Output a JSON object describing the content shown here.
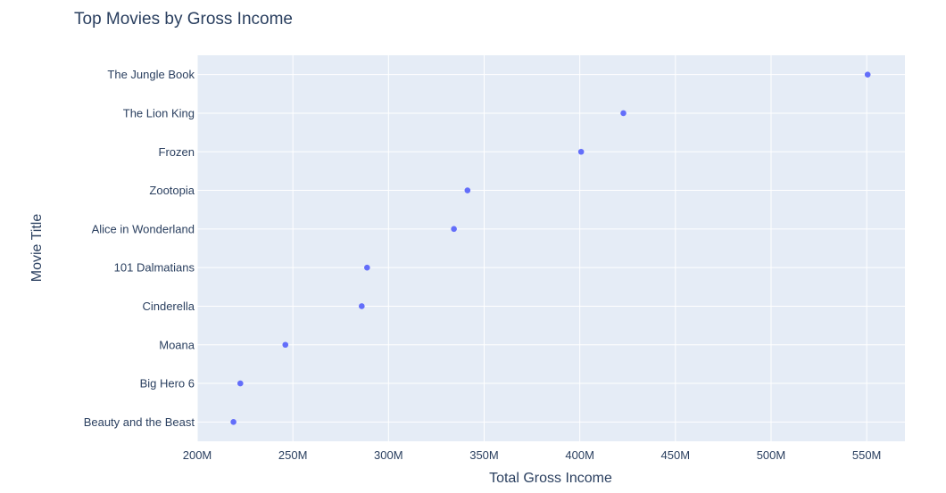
{
  "chart_data": {
    "type": "scatter",
    "title": "Top Movies by Gross Income",
    "xlabel": "Total Gross Income",
    "ylabel": "Movie Title",
    "xlim": [
      200000000,
      570000000
    ],
    "x_ticks": [
      {
        "value": 200000000,
        "label": "200M"
      },
      {
        "value": 250000000,
        "label": "250M"
      },
      {
        "value": 300000000,
        "label": "300M"
      },
      {
        "value": 350000000,
        "label": "350M"
      },
      {
        "value": 400000000,
        "label": "400M"
      },
      {
        "value": 450000000,
        "label": "450M"
      },
      {
        "value": 500000000,
        "label": "500M"
      },
      {
        "value": 550000000,
        "label": "550M"
      }
    ],
    "categories": [
      "Beauty and the Beast",
      "Big Hero 6",
      "Moana",
      "Cinderella",
      "101 Dalmatians",
      "Alice in Wonderland",
      "Zootopia",
      "Frozen",
      "The Lion King",
      "The Jungle Book"
    ],
    "values": [
      218950000,
      222530000,
      246080000,
      286000000,
      288800000,
      334200000,
      341300000,
      400700000,
      422800000,
      550500000
    ],
    "grid": true,
    "legend": "none",
    "colors": {
      "plot_bg": "#e5ecf6",
      "grid": "#ffffff",
      "marker": "#636efa",
      "text": "#2a3f5f"
    }
  }
}
